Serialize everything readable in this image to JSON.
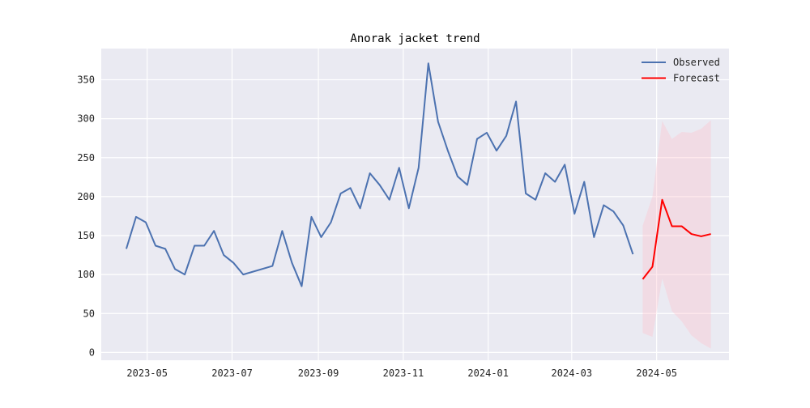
{
  "chart_data": {
    "type": "line",
    "title": "Anorak jacket trend",
    "xlabel": "",
    "ylabel": "",
    "ylim": [
      -10,
      390
    ],
    "xlim": [
      "2023-03-29",
      "2024-06-22"
    ],
    "grid": true,
    "legend": "top-right",
    "x_ticks": [
      {
        "date": "2023-05-01",
        "label": "2023-05"
      },
      {
        "date": "2023-07-01",
        "label": "2023-07"
      },
      {
        "date": "2023-09-01",
        "label": "2023-09"
      },
      {
        "date": "2023-11-01",
        "label": "2023-11"
      },
      {
        "date": "2024-01-01",
        "label": "2024-01"
      },
      {
        "date": "2024-03-01",
        "label": "2024-03"
      },
      {
        "date": "2024-05-01",
        "label": "2024-05"
      }
    ],
    "y_ticks": [
      0,
      50,
      100,
      150,
      200,
      250,
      300,
      350
    ],
    "series": [
      {
        "name": "Observed",
        "color": "#4c72b0",
        "points": [
          [
            "2023-04-16",
            133
          ],
          [
            "2023-04-23",
            174
          ],
          [
            "2023-04-30",
            167
          ],
          [
            "2023-05-07",
            137
          ],
          [
            "2023-05-14",
            133
          ],
          [
            "2023-05-21",
            107
          ],
          [
            "2023-05-28",
            100
          ],
          [
            "2023-06-04",
            137
          ],
          [
            "2023-06-11",
            137
          ],
          [
            "2023-06-18",
            156
          ],
          [
            "2023-06-25",
            125
          ],
          [
            "2023-07-02",
            115
          ],
          [
            "2023-07-09",
            100
          ],
          [
            "2023-07-30",
            111
          ],
          [
            "2023-08-06",
            156
          ],
          [
            "2023-08-13",
            115
          ],
          [
            "2023-08-20",
            85
          ],
          [
            "2023-08-27",
            174
          ],
          [
            "2023-09-03",
            148
          ],
          [
            "2023-09-10",
            167
          ],
          [
            "2023-09-17",
            204
          ],
          [
            "2023-09-24",
            211
          ],
          [
            "2023-10-01",
            185
          ],
          [
            "2023-10-08",
            230
          ],
          [
            "2023-10-15",
            215
          ],
          [
            "2023-10-22",
            196
          ],
          [
            "2023-10-29",
            237
          ],
          [
            "2023-11-05",
            185
          ],
          [
            "2023-11-12",
            237
          ],
          [
            "2023-11-19",
            371
          ],
          [
            "2023-11-26",
            296
          ],
          [
            "2023-12-03",
            259
          ],
          [
            "2023-12-10",
            226
          ],
          [
            "2023-12-17",
            215
          ],
          [
            "2023-12-24",
            274
          ],
          [
            "2023-12-31",
            282
          ],
          [
            "2024-01-07",
            259
          ],
          [
            "2024-01-14",
            278
          ],
          [
            "2024-01-21",
            322
          ],
          [
            "2024-01-28",
            204
          ],
          [
            "2024-02-04",
            196
          ],
          [
            "2024-02-11",
            230
          ],
          [
            "2024-02-18",
            219
          ],
          [
            "2024-02-25",
            241
          ],
          [
            "2024-03-03",
            178
          ],
          [
            "2024-03-10",
            219
          ],
          [
            "2024-03-17",
            148
          ],
          [
            "2024-03-24",
            189
          ],
          [
            "2024-03-31",
            181
          ],
          [
            "2024-04-07",
            163
          ],
          [
            "2024-04-14",
            126
          ]
        ]
      },
      {
        "name": "Forecast",
        "color": "#ff0000",
        "points": [
          [
            "2024-04-21",
            94
          ],
          [
            "2024-04-28",
            110
          ],
          [
            "2024-05-05",
            196
          ],
          [
            "2024-05-12",
            162
          ],
          [
            "2024-05-19",
            162
          ],
          [
            "2024-05-26",
            152
          ],
          [
            "2024-06-02",
            149
          ],
          [
            "2024-06-09",
            152
          ]
        ]
      }
    ],
    "forecast_interval": {
      "color": "#ffc0cb",
      "points": [
        [
          "2024-04-21",
          25,
          163
        ],
        [
          "2024-04-28",
          20,
          200
        ],
        [
          "2024-05-05",
          95,
          297
        ],
        [
          "2024-05-12",
          53,
          274
        ],
        [
          "2024-05-19",
          40,
          283
        ],
        [
          "2024-05-26",
          22,
          282
        ],
        [
          "2024-06-02",
          12,
          287
        ],
        [
          "2024-06-09",
          5,
          298
        ]
      ]
    }
  }
}
